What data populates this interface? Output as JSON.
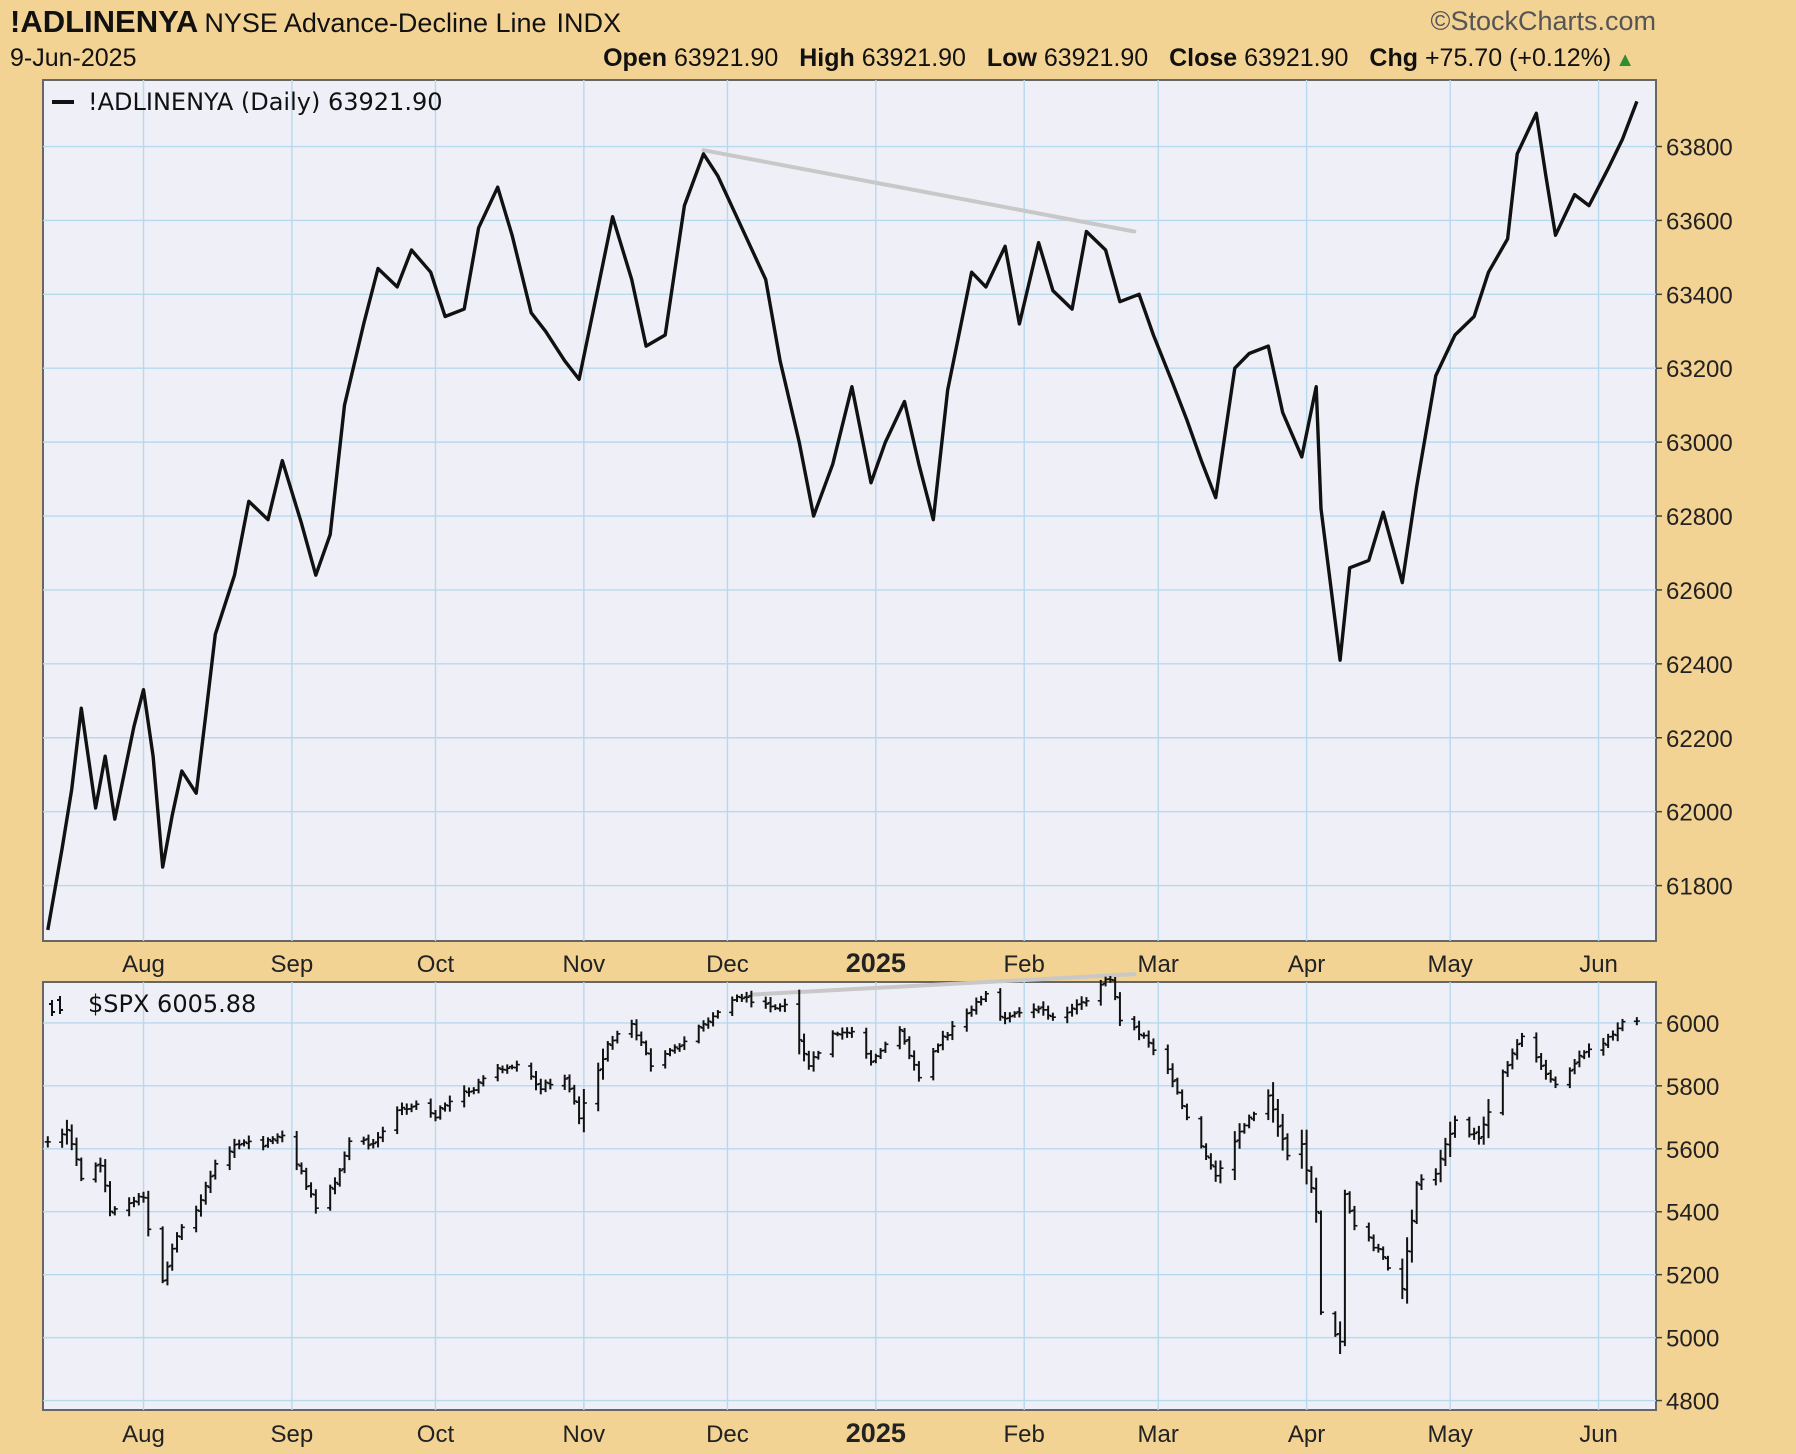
{
  "header": {
    "symbol": "!ADLINENYA",
    "description": "NYSE Advance-Decline Line",
    "type": "INDX",
    "brand": "©StockCharts.com",
    "date": "9-Jun-2025",
    "open_label": "Open",
    "open": "63921.90",
    "high_label": "High",
    "high": "63921.90",
    "low_label": "Low",
    "low": "63921.90",
    "close_label": "Close",
    "close": "63921.90",
    "chg_label": "Chg",
    "chg": "+75.70 (+0.12%)"
  },
  "colors": {
    "background": "#f3d394",
    "panel": "#eff0f7",
    "grid": "#b8d8ee",
    "price": "#111111",
    "trendline": "#c8c8c8",
    "up": "#2f8f2f"
  },
  "chart_data": [
    {
      "type": "line",
      "legend": "!ADLINENYA (Daily) 63921.90",
      "x_ticks": [
        "Aug",
        "Sep",
        "Oct",
        "Nov",
        "Dec",
        "2025",
        "Feb",
        "Mar",
        "Apr",
        "May",
        "Jun"
      ],
      "y_ticks": [
        "61800",
        "62000",
        "62200",
        "62400",
        "62600",
        "62800",
        "63000",
        "63200",
        "63400",
        "63600",
        "63800"
      ],
      "ylim": [
        61650,
        63980
      ],
      "x_range": [
        "2024-07-11",
        "2025-06-13"
      ],
      "series": [
        {
          "points": [
            [
              "2024-07-12",
              61680
            ],
            [
              "2024-07-15",
              61900
            ],
            [
              "2024-07-17",
              62060
            ],
            [
              "2024-07-19",
              62280
            ],
            [
              "2024-07-22",
              62010
            ],
            [
              "2024-07-24",
              62150
            ],
            [
              "2024-07-26",
              61980
            ],
            [
              "2024-07-30",
              62230
            ],
            [
              "2024-08-01",
              62330
            ],
            [
              "2024-08-03",
              62150
            ],
            [
              "2024-08-05",
              61850
            ],
            [
              "2024-08-07",
              61990
            ],
            [
              "2024-08-09",
              62110
            ],
            [
              "2024-08-12",
              62050
            ],
            [
              "2024-08-14",
              62260
            ],
            [
              "2024-08-16",
              62480
            ],
            [
              "2024-08-20",
              62640
            ],
            [
              "2024-08-23",
              62840
            ],
            [
              "2024-08-27",
              62790
            ],
            [
              "2024-08-30",
              62950
            ],
            [
              "2024-09-03",
              62780
            ],
            [
              "2024-09-06",
              62640
            ],
            [
              "2024-09-09",
              62750
            ],
            [
              "2024-09-12",
              63100
            ],
            [
              "2024-09-16",
              63320
            ],
            [
              "2024-09-19",
              63470
            ],
            [
              "2024-09-23",
              63420
            ],
            [
              "2024-09-26",
              63520
            ],
            [
              "2024-09-30",
              63460
            ],
            [
              "2024-10-03",
              63340
            ],
            [
              "2024-10-07",
              63360
            ],
            [
              "2024-10-10",
              63580
            ],
            [
              "2024-10-14",
              63690
            ],
            [
              "2024-10-17",
              63560
            ],
            [
              "2024-10-21",
              63350
            ],
            [
              "2024-10-24",
              63300
            ],
            [
              "2024-10-28",
              63220
            ],
            [
              "2024-10-31",
              63170
            ],
            [
              "2024-11-04",
              63420
            ],
            [
              "2024-11-07",
              63610
            ],
            [
              "2024-11-11",
              63440
            ],
            [
              "2024-11-14",
              63260
            ],
            [
              "2024-11-18",
              63290
            ],
            [
              "2024-11-22",
              63640
            ],
            [
              "2024-11-26",
              63780
            ],
            [
              "2024-11-29",
              63720
            ],
            [
              "2024-12-04",
              63580
            ],
            [
              "2024-12-09",
              63440
            ],
            [
              "2024-12-12",
              63220
            ],
            [
              "2024-12-16",
              63000
            ],
            [
              "2024-12-19",
              62800
            ],
            [
              "2024-12-23",
              62940
            ],
            [
              "2024-12-27",
              63150
            ],
            [
              "2024-12-31",
              62890
            ],
            [
              "2025-01-03",
              63000
            ],
            [
              "2025-01-07",
              63110
            ],
            [
              "2025-01-10",
              62940
            ],
            [
              "2025-01-13",
              62790
            ],
            [
              "2025-01-16",
              63140
            ],
            [
              "2025-01-21",
              63460
            ],
            [
              "2025-01-24",
              63420
            ],
            [
              "2025-01-28",
              63530
            ],
            [
              "2025-01-31",
              63320
            ],
            [
              "2025-02-04",
              63540
            ],
            [
              "2025-02-07",
              63410
            ],
            [
              "2025-02-11",
              63360
            ],
            [
              "2025-02-14",
              63570
            ],
            [
              "2025-02-18",
              63520
            ],
            [
              "2025-02-21",
              63380
            ],
            [
              "2025-02-25",
              63400
            ],
            [
              "2025-02-28",
              63290
            ],
            [
              "2025-03-04",
              63160
            ],
            [
              "2025-03-07",
              63060
            ],
            [
              "2025-03-10",
              62950
            ],
            [
              "2025-03-13",
              62850
            ],
            [
              "2025-03-17",
              63200
            ],
            [
              "2025-03-20",
              63240
            ],
            [
              "2025-03-24",
              63260
            ],
            [
              "2025-03-27",
              63080
            ],
            [
              "2025-03-31",
              62960
            ],
            [
              "2025-04-03",
              63150
            ],
            [
              "2025-04-04",
              62820
            ],
            [
              "2025-04-08",
              62410
            ],
            [
              "2025-04-10",
              62660
            ],
            [
              "2025-04-14",
              62680
            ],
            [
              "2025-04-17",
              62810
            ],
            [
              "2025-04-21",
              62620
            ],
            [
              "2025-04-24",
              62880
            ],
            [
              "2025-04-28",
              63180
            ],
            [
              "2025-05-02",
              63290
            ],
            [
              "2025-05-06",
              63340
            ],
            [
              "2025-05-09",
              63460
            ],
            [
              "2025-05-13",
              63550
            ],
            [
              "2025-05-15",
              63780
            ],
            [
              "2025-05-19",
              63890
            ],
            [
              "2025-05-21",
              63720
            ],
            [
              "2025-05-23",
              63560
            ],
            [
              "2025-05-27",
              63670
            ],
            [
              "2025-05-30",
              63640
            ],
            [
              "2025-06-03",
              63740
            ],
            [
              "2025-06-06",
              63820
            ],
            [
              "2025-06-09",
              63922
            ]
          ]
        }
      ],
      "trendline": [
        [
          "2024-11-26",
          63790
        ],
        [
          "2025-02-24",
          63570
        ]
      ]
    },
    {
      "type": "ohlc",
      "legend": "$SPX 6005.88",
      "x_ticks": [
        "Aug",
        "Sep",
        "Oct",
        "Nov",
        "Dec",
        "2025",
        "Feb",
        "Mar",
        "Apr",
        "May",
        "Jun"
      ],
      "y_ticks": [
        "4800",
        "5000",
        "5200",
        "5400",
        "5600",
        "5800",
        "6000"
      ],
      "ylim": [
        4770,
        6130
      ],
      "x_range": [
        "2024-07-11",
        "2025-06-13"
      ],
      "closes": [
        [
          "2024-07-12",
          5615
        ],
        [
          "2024-07-16",
          5667
        ],
        [
          "2024-07-19",
          5505
        ],
        [
          "2024-07-23",
          5555
        ],
        [
          "2024-07-25",
          5400
        ],
        [
          "2024-07-30",
          5436
        ],
        [
          "2024-08-01",
          5446
        ],
        [
          "2024-08-02",
          5346
        ],
        [
          "2024-08-05",
          5186
        ],
        [
          "2024-08-08",
          5319
        ],
        [
          "2024-08-13",
          5434
        ],
        [
          "2024-08-16",
          5554
        ],
        [
          "2024-08-21",
          5620
        ],
        [
          "2024-08-26",
          5616
        ],
        [
          "2024-08-30",
          5648
        ],
        [
          "2024-09-03",
          5528
        ],
        [
          "2024-09-06",
          5408
        ],
        [
          "2024-09-10",
          5496
        ],
        [
          "2024-09-13",
          5626
        ],
        [
          "2024-09-18",
          5618
        ],
        [
          "2024-09-23",
          5718
        ],
        [
          "2024-09-27",
          5738
        ],
        [
          "2024-10-01",
          5708
        ],
        [
          "2024-10-04",
          5751
        ],
        [
          "2024-10-09",
          5792
        ],
        [
          "2024-10-14",
          5859
        ],
        [
          "2024-10-18",
          5864
        ],
        [
          "2024-10-23",
          5797
        ],
        [
          "2024-10-28",
          5823
        ],
        [
          "2024-10-31",
          5705
        ],
        [
          "2024-11-06",
          5929
        ],
        [
          "2024-11-11",
          6001
        ],
        [
          "2024-11-15",
          5870
        ],
        [
          "2024-11-20",
          5917
        ],
        [
          "2024-11-25",
          5987
        ],
        [
          "2024-11-29",
          6032
        ],
        [
          "2024-12-04",
          6086
        ],
        [
          "2024-12-09",
          6052
        ],
        [
          "2024-12-13",
          6051
        ],
        [
          "2024-12-18",
          5872
        ],
        [
          "2024-12-23",
          5974
        ],
        [
          "2024-12-27",
          5970
        ],
        [
          "2024-12-31",
          5881
        ],
        [
          "2025-01-06",
          5975
        ],
        [
          "2025-01-10",
          5827
        ],
        [
          "2025-01-15",
          5950
        ],
        [
          "2025-01-21",
          6049
        ],
        [
          "2025-01-24",
          6101
        ],
        [
          "2025-01-27",
          6012
        ],
        [
          "2025-01-31",
          6040
        ],
        [
          "2025-02-04",
          6037
        ],
        [
          "2025-02-07",
          6026
        ],
        [
          "2025-02-12",
          6051
        ],
        [
          "2025-02-19",
          6144
        ],
        [
          "2025-02-21",
          6013
        ],
        [
          "2025-02-26",
          5956
        ],
        [
          "2025-03-03",
          5849
        ],
        [
          "2025-03-06",
          5738
        ],
        [
          "2025-03-10",
          5614
        ],
        [
          "2025-03-13",
          5521
        ],
        [
          "2025-03-19",
          5675
        ],
        [
          "2025-03-24",
          5767
        ],
        [
          "2025-03-28",
          5581
        ],
        [
          "2025-03-31",
          5612
        ],
        [
          "2025-04-03",
          5396
        ],
        [
          "2025-04-04",
          5074
        ],
        [
          "2025-04-08",
          4982
        ],
        [
          "2025-04-09",
          5457
        ],
        [
          "2025-04-11",
          5363
        ],
        [
          "2025-04-16",
          5276
        ],
        [
          "2025-04-21",
          5158
        ],
        [
          "2025-04-24",
          5484
        ],
        [
          "2025-04-28",
          5529
        ],
        [
          "2025-05-02",
          5687
        ],
        [
          "2025-05-07",
          5631
        ],
        [
          "2025-05-12",
          5844
        ],
        [
          "2025-05-16",
          5958
        ],
        [
          "2025-05-21",
          5845
        ],
        [
          "2025-05-23",
          5803
        ],
        [
          "2025-05-28",
          5889
        ],
        [
          "2025-06-02",
          5936
        ],
        [
          "2025-06-06",
          6000
        ],
        [
          "2025-06-09",
          6006
        ]
      ],
      "trendline": [
        [
          "2024-12-06",
          6090
        ],
        [
          "2025-02-24",
          6155
        ]
      ]
    }
  ]
}
